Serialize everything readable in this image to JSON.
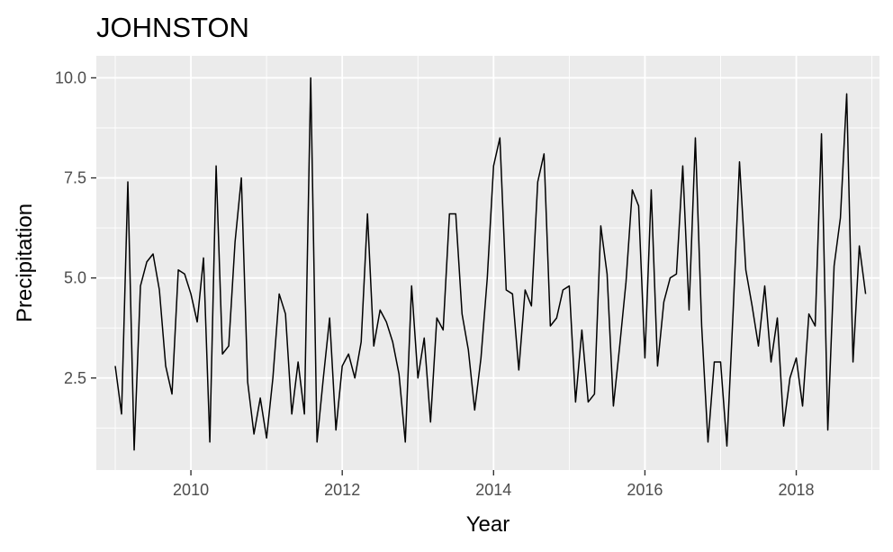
{
  "chart_data": {
    "type": "line",
    "title": "JOHNSTON",
    "xlabel": "Year",
    "ylabel": "Precipitation",
    "x_ticks": [
      "2010",
      "2012",
      "2014",
      "2016",
      "2018"
    ],
    "y_ticks": [
      "2.5",
      "5.0",
      "7.5",
      "10.0"
    ],
    "xlim": [
      2008.75,
      2019.1
    ],
    "ylim": [
      0.2,
      10.55
    ],
    "grid": true,
    "background": "#EBEBEB",
    "gridline_color": "#FFFFFF",
    "line_color": "#000000",
    "x_start": "2009-01",
    "x_step": "month",
    "values": [
      2.8,
      1.6,
      7.4,
      0.7,
      4.8,
      5.4,
      5.6,
      4.7,
      2.8,
      2.1,
      5.2,
      5.1,
      4.6,
      3.9,
      5.5,
      0.9,
      7.8,
      3.1,
      3.3,
      5.9,
      7.5,
      2.4,
      1.1,
      2.0,
      1.0,
      2.5,
      4.6,
      4.1,
      1.6,
      2.9,
      1.6,
      10.0,
      0.9,
      2.5,
      4.0,
      1.2,
      2.8,
      3.1,
      2.5,
      3.4,
      6.6,
      3.3,
      4.2,
      3.9,
      3.4,
      2.6,
      0.9,
      4.8,
      2.5,
      3.5,
      1.4,
      4.0,
      3.7,
      6.6,
      6.6,
      4.1,
      3.2,
      1.7,
      3.0,
      5.0,
      7.8,
      8.5,
      4.7,
      4.6,
      2.7,
      4.7,
      4.3,
      7.4,
      8.1,
      3.8,
      4.0,
      4.7,
      4.8,
      1.9,
      3.7,
      1.9,
      2.1,
      6.3,
      5.1,
      1.8,
      3.3,
      4.9,
      7.2,
      6.8,
      3.0,
      7.2,
      2.8,
      4.4,
      5.0,
      5.1,
      7.8,
      4.2,
      8.5,
      3.8,
      0.9,
      2.9,
      2.9,
      0.8,
      4.2,
      7.9,
      5.2,
      4.3,
      3.3,
      4.8,
      2.9,
      4.0,
      1.3,
      2.5,
      3.0,
      1.8,
      4.1,
      3.8,
      8.6,
      1.2,
      5.3,
      6.5,
      9.6,
      2.9,
      5.8,
      4.6
    ]
  }
}
